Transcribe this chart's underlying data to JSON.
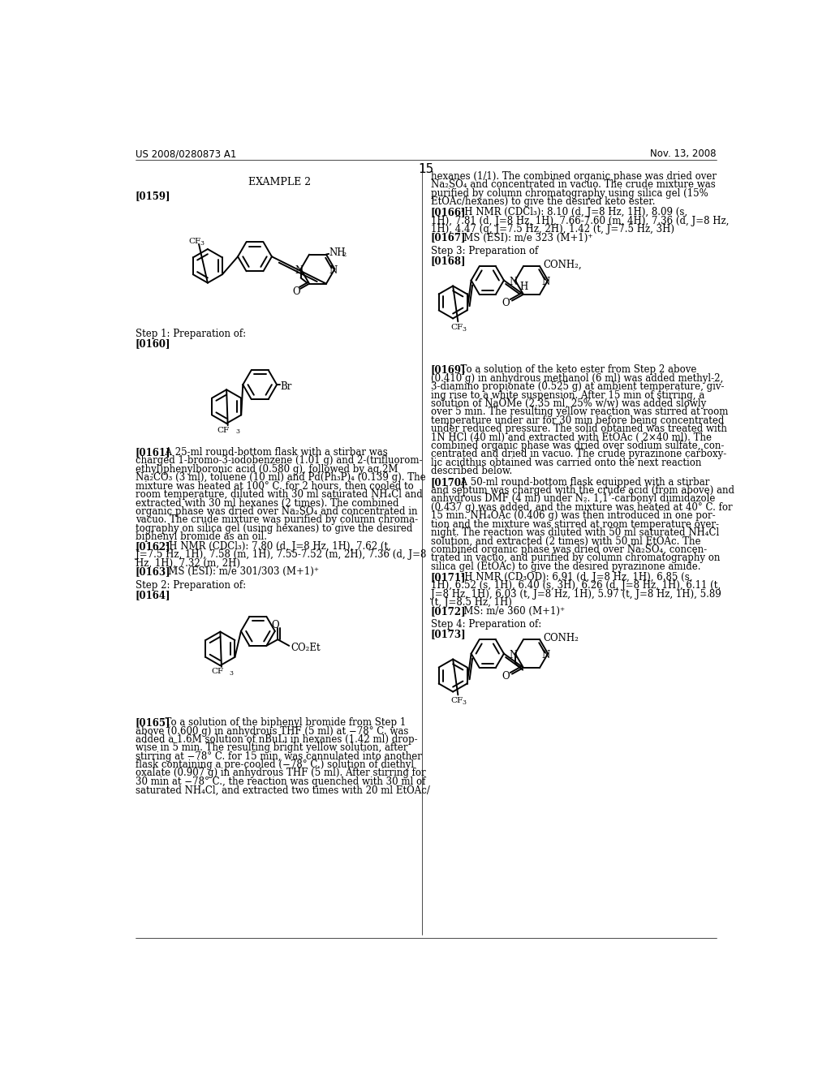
{
  "page_header_left": "US 2008/0280873 A1",
  "page_header_right": "Nov. 13, 2008",
  "page_number": "15",
  "background_color": "#ffffff",
  "text_color": "#000000"
}
